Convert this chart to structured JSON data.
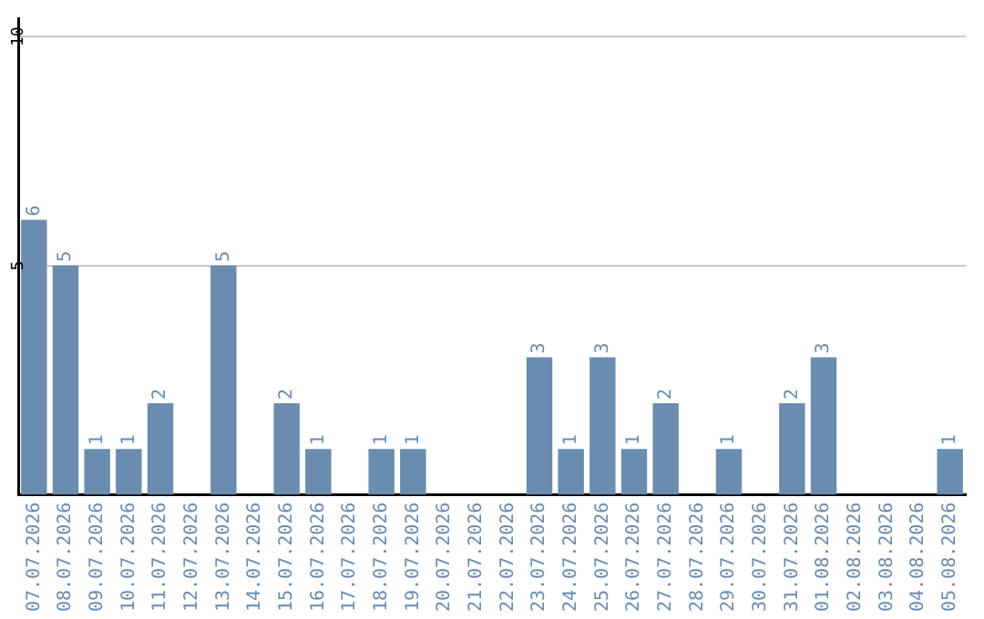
{
  "chart_data": {
    "type": "bar",
    "categories": [
      "07.07.2026",
      "08.07.2026",
      "09.07.2026",
      "10.07.2026",
      "11.07.2026",
      "12.07.2026",
      "13.07.2026",
      "14.07.2026",
      "15.07.2026",
      "16.07.2026",
      "17.07.2026",
      "18.07.2026",
      "19.07.2026",
      "20.07.2026",
      "21.07.2026",
      "22.07.2026",
      "23.07.2026",
      "24.07.2026",
      "25.07.2026",
      "26.07.2026",
      "27.07.2026",
      "28.07.2026",
      "29.07.2026",
      "30.07.2026",
      "31.07.2026",
      "01.08.2026",
      "02.08.2026",
      "03.08.2026",
      "04.08.2026",
      "05.08.2026"
    ],
    "values": [
      6,
      5,
      1,
      1,
      2,
      0,
      5,
      0,
      2,
      1,
      0,
      1,
      1,
      0,
      0,
      0,
      3,
      1,
      3,
      1,
      2,
      0,
      1,
      0,
      2,
      3,
      0,
      0,
      0,
      1
    ],
    "value_labels": [
      "6",
      "5",
      "1",
      "1",
      "2",
      null,
      "5",
      null,
      "2",
      "1",
      null,
      "1",
      "1",
      null,
      null,
      null,
      "3",
      "1",
      "3",
      "1",
      "2",
      null,
      "1",
      null,
      "2",
      "3",
      null,
      null,
      null,
      "1"
    ],
    "color": "#6a8caf",
    "ylim": [
      0,
      10.4
    ],
    "yticks": [
      5,
      10
    ],
    "grid": "y"
  }
}
